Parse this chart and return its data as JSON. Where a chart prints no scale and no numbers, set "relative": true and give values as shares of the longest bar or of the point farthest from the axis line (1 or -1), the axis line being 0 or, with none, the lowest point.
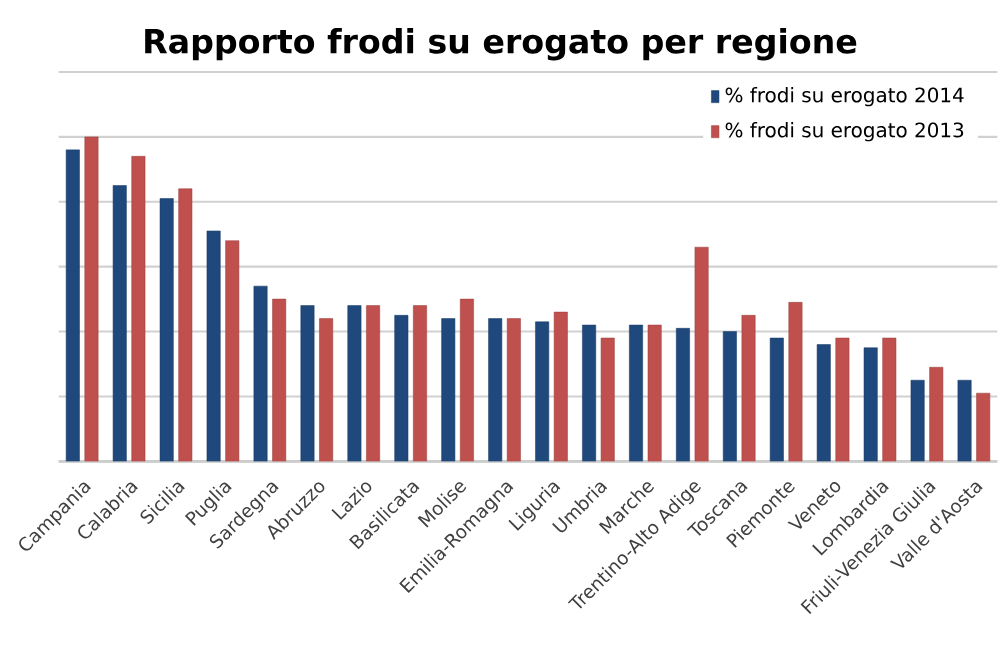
{
  "chart_data": {
    "type": "bar",
    "title": "Rapporto frodi su erogato per regione",
    "relative": true,
    "grid": "y",
    "legend": "top right",
    "categories": [
      "Campania",
      "Calabria",
      "Sicilia",
      "Puglia",
      "Sardegna",
      "Abruzzo",
      "Lazio",
      "Basilicata",
      "Molise",
      "Emilia-Romagna",
      "Liguria",
      "Umbria",
      "Marche",
      "Trentino-Alto Adige",
      "Toscana",
      "Piemonte",
      "Veneto",
      "Lombardia",
      "Friuli-Venezia Giulia",
      "Valle d'Aosta"
    ],
    "series": [
      {
        "name": "% frodi su erogato 2014",
        "color": "#1f497d",
        "values": [
          0.96,
          0.85,
          0.81,
          0.71,
          0.54,
          0.48,
          0.48,
          0.45,
          0.44,
          0.44,
          0.43,
          0.42,
          0.42,
          0.41,
          0.4,
          0.38,
          0.36,
          0.35,
          0.25,
          0.25
        ]
      },
      {
        "name": "% frodi su erogato 2013",
        "color": "#c0504d",
        "values": [
          1.0,
          0.94,
          0.84,
          0.68,
          0.5,
          0.44,
          0.48,
          0.48,
          0.5,
          0.44,
          0.46,
          0.38,
          0.42,
          0.66,
          0.45,
          0.49,
          0.38,
          0.38,
          0.29,
          0.21
        ]
      }
    ]
  }
}
